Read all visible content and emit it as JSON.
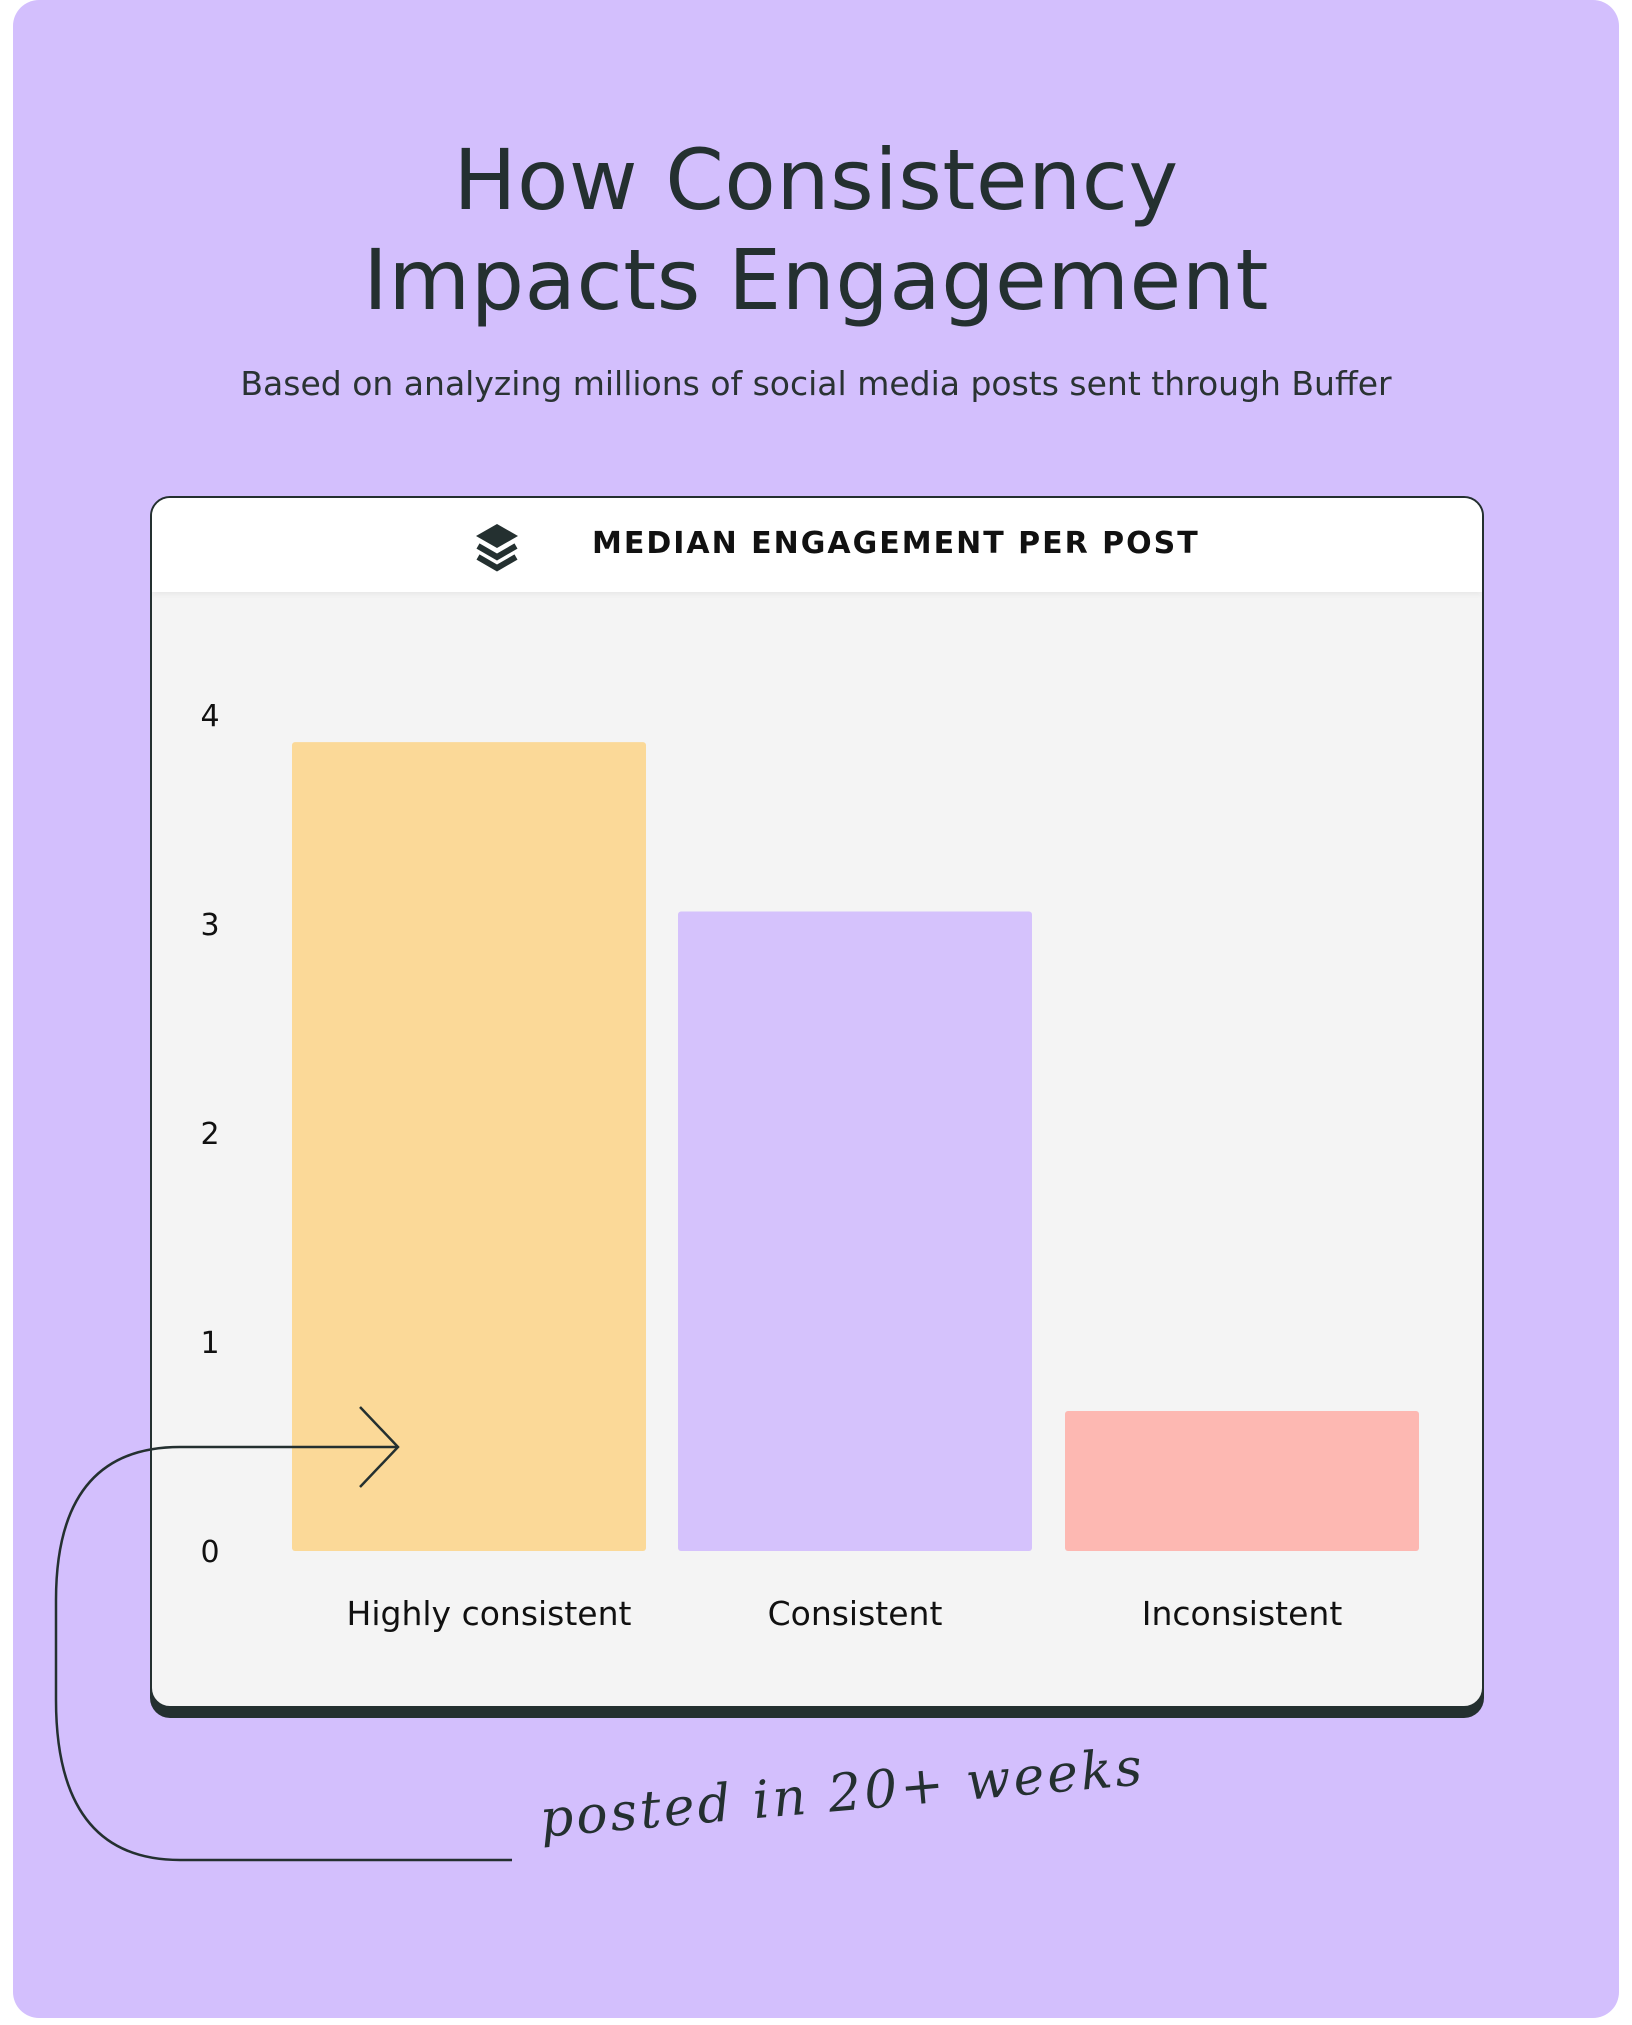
{
  "header": {
    "title_line1": "How Consistency",
    "title_line2": "Impacts Engagement",
    "subtitle": "Based on analyzing millions of social media posts sent through Buffer"
  },
  "logo_icon": "buffer-stack-icon",
  "annotation": "posted in 20+ weeks",
  "chart_data": {
    "type": "bar",
    "title": "MEDIAN ENGAGEMENT PER POST",
    "categories": [
      "Highly consistent",
      "Consistent",
      "Inconsistent"
    ],
    "values": [
      3.87,
      3.06,
      0.67
    ],
    "colors": [
      "#FBD998",
      "#D5C2FC",
      "#FDB8B2"
    ],
    "ylim": [
      0,
      4
    ],
    "yticks": [
      "0",
      "1",
      "2",
      "3",
      "4"
    ],
    "xlabel": "",
    "ylabel": "",
    "grid": false
  },
  "colors": {
    "background": "#D3BFFD",
    "card": "#F4F4F4",
    "ink": "#243030"
  }
}
